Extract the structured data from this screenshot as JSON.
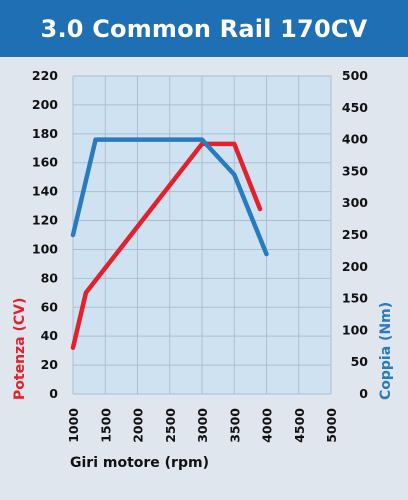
{
  "header": {
    "title": "3.0 Common Rail 170CV",
    "background_color": "#1f6fb4"
  },
  "chart_data": {
    "type": "line",
    "title": "3.0 Common Rail 170CV",
    "xlabel": "Giri motore (rpm)",
    "ylabel_left": "Potenza (CV)",
    "ylabel_right": "Coppia (Nm)",
    "xlim": [
      1000,
      5000
    ],
    "ylim_left": [
      0,
      220
    ],
    "ylim_right": [
      0,
      500
    ],
    "x_ticks": [
      "1000",
      "1500",
      "2000",
      "2500",
      "3000",
      "3500",
      "4000",
      "4500",
      "5000"
    ],
    "y_left_ticks": [
      "0",
      "20",
      "40",
      "60",
      "80",
      "100",
      "120",
      "140",
      "160",
      "180",
      "200",
      "220"
    ],
    "y_right_ticks": [
      "0",
      "50",
      "100",
      "150",
      "200",
      "250",
      "300",
      "350",
      "400",
      "450",
      "500"
    ],
    "grid": true,
    "series": [
      {
        "name": "Potenza (CV)",
        "axis": "left",
        "color": "#e3202b",
        "x": [
          1000,
          1200,
          3000,
          3500,
          3900
        ],
        "y": [
          32,
          70,
          173,
          173,
          128
        ]
      },
      {
        "name": "Coppia (Nm)",
        "axis": "right",
        "color": "#2a7ac0",
        "x": [
          1000,
          1350,
          3000,
          3500,
          4000
        ],
        "y": [
          250,
          400,
          400,
          345,
          220
        ]
      }
    ]
  }
}
